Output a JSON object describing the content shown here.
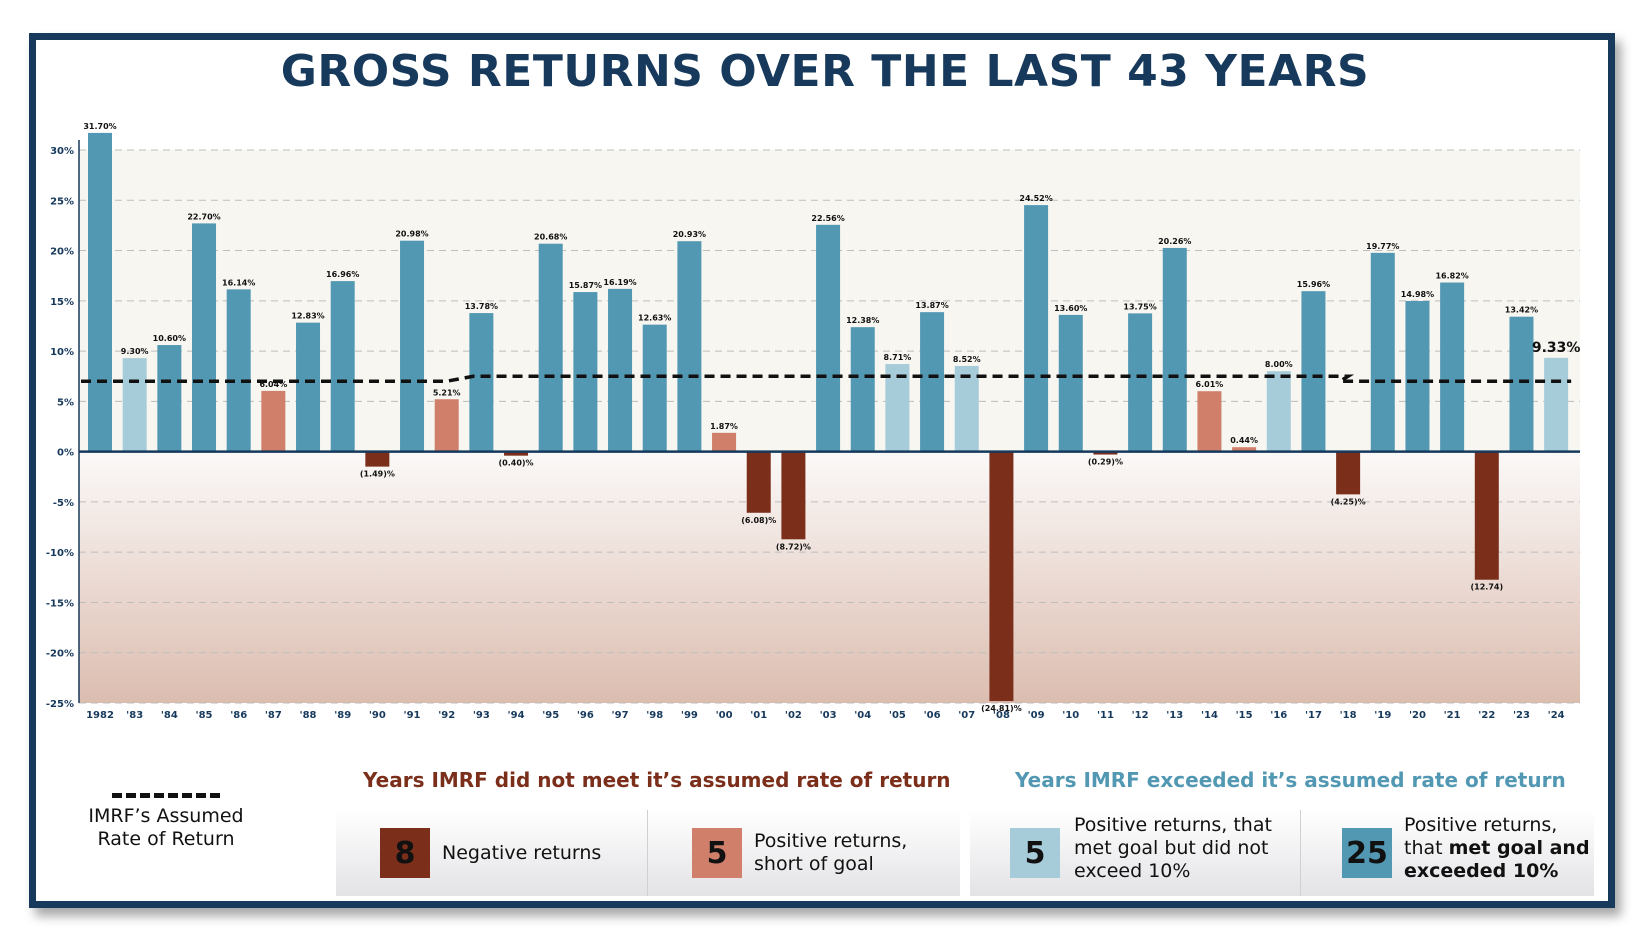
{
  "title": "GROSS RETURNS OVER THE LAST 43 YEARS",
  "colors": {
    "frame": "#16395c",
    "negative": "#7b2f1b",
    "short_of_goal": "#cf7f6a",
    "met_goal": "#a6cbd9",
    "exceeded": "#5298b3"
  },
  "chart_data": {
    "type": "bar",
    "ylim": [
      -25,
      30
    ],
    "yticks": [
      "30%",
      "25%",
      "20%",
      "15%",
      "10%",
      "5%",
      "0%",
      "-5%",
      "-10%",
      "-15%",
      "-20%",
      "-25%"
    ],
    "ytick_values": [
      30,
      25,
      20,
      15,
      10,
      5,
      0,
      -5,
      -10,
      -15,
      -20,
      -25
    ],
    "grid": true,
    "categories": [
      "1982",
      "'83",
      "'84",
      "'85",
      "'86",
      "'87",
      "'88",
      "'89",
      "'90",
      "'91",
      "'92",
      "'93",
      "'94",
      "'95",
      "'96",
      "'97",
      "'98",
      "'99",
      "'00",
      "'01",
      "'02",
      "'03",
      "'04",
      "'05",
      "'06",
      "'07",
      "'08",
      "'09",
      "'10",
      "'11",
      "'12",
      "'13",
      "'14",
      "'15",
      "'16",
      "'17",
      "'18",
      "'19",
      "'20",
      "'21",
      "'22",
      "'23",
      "'24"
    ],
    "values": [
      31.7,
      9.3,
      10.6,
      22.7,
      16.14,
      6.04,
      12.83,
      16.96,
      -1.49,
      20.98,
      5.21,
      13.78,
      -0.4,
      20.68,
      15.87,
      16.19,
      12.63,
      20.93,
      1.87,
      -6.08,
      -8.72,
      22.56,
      12.38,
      8.71,
      13.87,
      8.52,
      -24.81,
      24.52,
      13.6,
      -0.29,
      13.75,
      20.26,
      6.01,
      0.44,
      8.0,
      15.96,
      -4.25,
      19.77,
      14.98,
      16.82,
      -12.74,
      13.42,
      9.33
    ],
    "labels": [
      "31.70%",
      "9.30%",
      "10.60%",
      "22.70%",
      "16.14%",
      "6.04%",
      "12.83%",
      "16.96%",
      "(1.49)%",
      "20.98%",
      "5.21%",
      "13.78%",
      "(0.40)%",
      "20.68%",
      "15.87%",
      "16.19%",
      "12.63%",
      "20.93%",
      "1.87%",
      "(6.08)%",
      "(8.72)%",
      "22.56%",
      "12.38%",
      "8.71%",
      "13.87%",
      "8.52%",
      "(24.81)%",
      "24.52%",
      "13.60%",
      "(0.29)%",
      "13.75%",
      "20.26%",
      "6.01%",
      "0.44%",
      "8.00%",
      "15.96%",
      "(4.25)%",
      "19.77%",
      "14.98%",
      "16.82%",
      "(12.74)",
      "13.42%",
      "9.33%"
    ],
    "groups": [
      "exceeded",
      "met_goal",
      "exceeded",
      "exceeded",
      "exceeded",
      "short_of_goal",
      "exceeded",
      "exceeded",
      "negative",
      "exceeded",
      "short_of_goal",
      "exceeded",
      "negative",
      "exceeded",
      "exceeded",
      "exceeded",
      "exceeded",
      "exceeded",
      "short_of_goal",
      "negative",
      "negative",
      "exceeded",
      "exceeded",
      "met_goal",
      "exceeded",
      "met_goal",
      "negative",
      "exceeded",
      "exceeded",
      "negative",
      "exceeded",
      "exceeded",
      "short_of_goal",
      "short_of_goal",
      "met_goal",
      "exceeded",
      "negative",
      "exceeded",
      "exceeded",
      "exceeded",
      "negative",
      "exceeded",
      "met_goal"
    ],
    "highlight_label_index": 42,
    "assumed_rate": {
      "name": "IMRF's Assumed Rate of Return",
      "segments": [
        {
          "from": "1982",
          "to": "'92",
          "value": 7.0
        },
        {
          "from": "'93",
          "to": "'18",
          "value": 7.5
        },
        {
          "from": "'18",
          "to": "'24",
          "value": 7.0
        }
      ]
    }
  },
  "legend": {
    "assumed_rate_label": "IMRF’s Assumed Rate of Return",
    "not_met_heading": "Years IMRF did not meet it’s assumed rate of return",
    "exceeded_heading": "Years IMRF exceeded it’s assumed rate of return",
    "items": [
      {
        "count": "8",
        "text": "Negative returns"
      },
      {
        "count": "5",
        "text": "Positive returns, short of goal"
      },
      {
        "count": "5",
        "text": "Positive returns, that met goal but did not exceed 10%"
      },
      {
        "count": "25",
        "text_plain": "Positive returns, that ",
        "text_bold": "met goal and exceeded 10%"
      }
    ]
  }
}
